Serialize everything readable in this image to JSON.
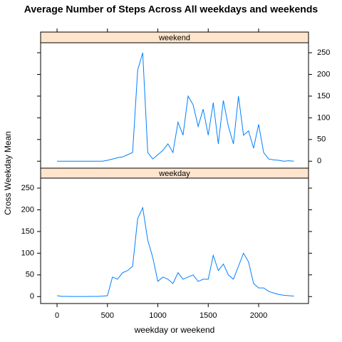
{
  "chart_data": {
    "type": "line",
    "title": "Average Number of Steps Across All weekdays and weekends",
    "x_label": "weekday or weekend",
    "y_label": "Cross Weekday Mean",
    "x": [
      0,
      50,
      100,
      150,
      200,
      250,
      300,
      350,
      400,
      450,
      500,
      550,
      600,
      650,
      700,
      750,
      800,
      850,
      900,
      950,
      1000,
      1050,
      1100,
      1150,
      1200,
      1250,
      1300,
      1350,
      1400,
      1450,
      1500,
      1550,
      1600,
      1650,
      1700,
      1750,
      1800,
      1850,
      1900,
      1950,
      2000,
      2050,
      2100,
      2150,
      2200,
      2250,
      2300,
      2350
    ],
    "xlim": [
      -163,
      2495
    ],
    "xticks": [
      0,
      500,
      1000,
      1500,
      2000
    ],
    "ylim": [
      -16,
      273
    ],
    "yticks": [
      0,
      50,
      100,
      150,
      200,
      250
    ],
    "series": [
      {
        "name": "weekend",
        "color": "#0080ff",
        "values": [
          0,
          0,
          0,
          0,
          0,
          0,
          0,
          0,
          0,
          0,
          2,
          5,
          8,
          10,
          15,
          20,
          210,
          250,
          20,
          5,
          15,
          25,
          40,
          20,
          90,
          60,
          150,
          130,
          80,
          120,
          60,
          135,
          40,
          140,
          80,
          40,
          150,
          60,
          70,
          30,
          85,
          20,
          5,
          3,
          2,
          0,
          1,
          0
        ]
      },
      {
        "name": "weekday",
        "color": "#0080ff",
        "values": [
          2,
          0.5,
          0.4,
          0.2,
          0.3,
          0.3,
          0.2,
          0.5,
          0.4,
          1,
          2,
          45,
          40,
          55,
          60,
          70,
          180,
          205,
          130,
          90,
          35,
          45,
          40,
          30,
          55,
          40,
          45,
          50,
          35,
          40,
          40,
          95,
          60,
          75,
          50,
          40,
          70,
          100,
          80,
          30,
          20,
          20,
          12,
          8,
          5,
          3,
          2,
          1
        ]
      }
    ]
  }
}
